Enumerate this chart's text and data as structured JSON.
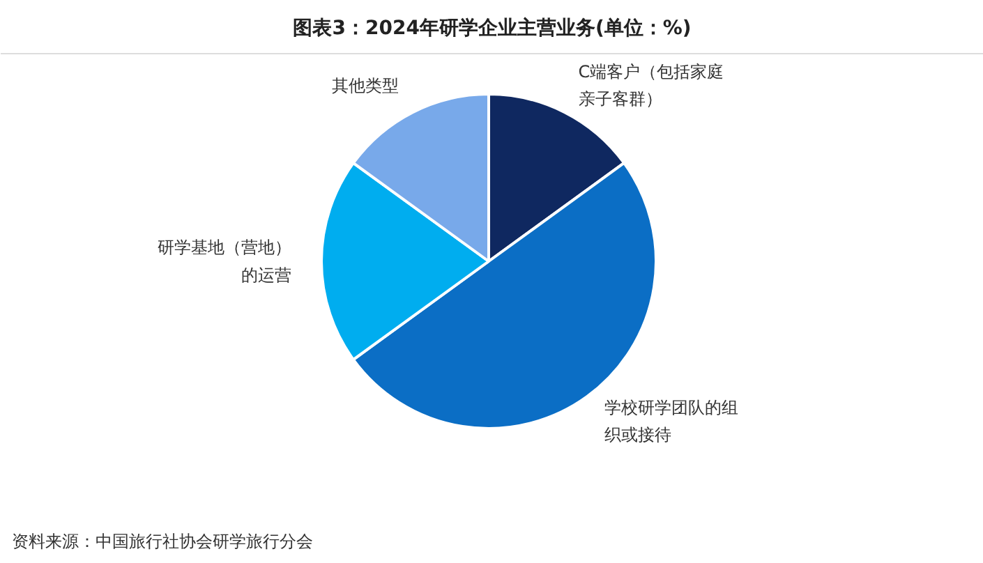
{
  "chart_data": {
    "type": "pie",
    "title": "图表3：2024年研学企业主营业务(单位：%)",
    "categories": [
      "C端客户（包括家庭亲子客群）",
      "学校研学团队的组织或接待",
      "研学基地（营地）的运营",
      "其他类型"
    ],
    "values": [
      15,
      50,
      20,
      15
    ],
    "colors": [
      "#0f2860",
      "#0b6ec5",
      "#00adef",
      "#78a9ea"
    ],
    "annotations": [
      "资料来源：中国旅行社协会研学旅行分会"
    ]
  }
}
